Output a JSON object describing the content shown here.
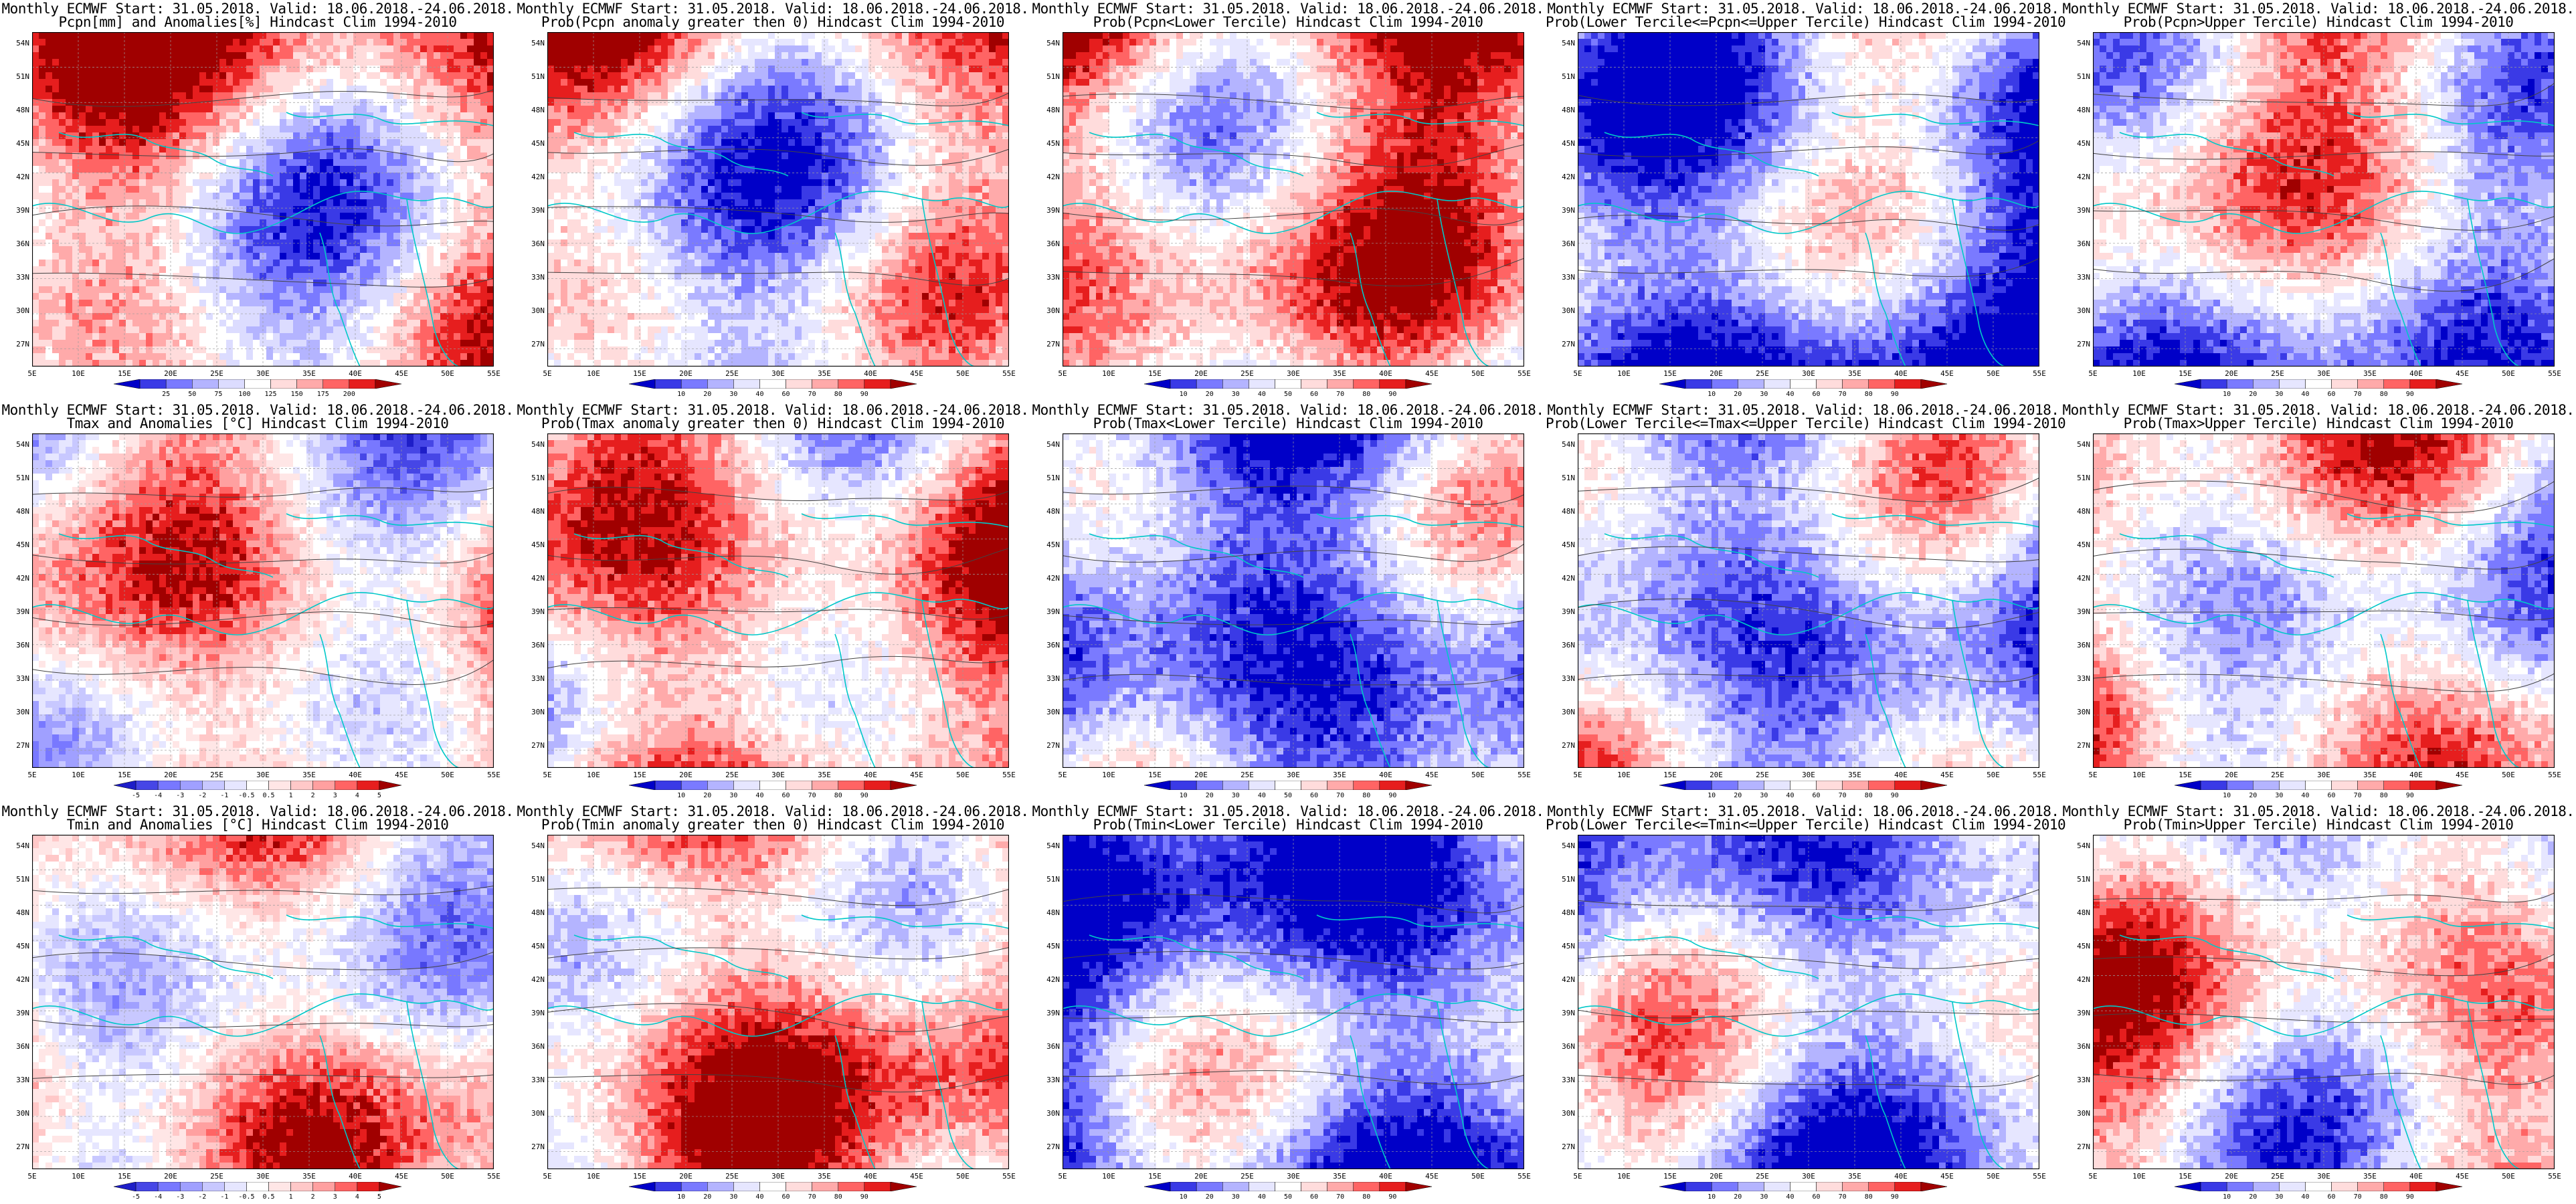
{
  "grid": {
    "panels": [
      {
        "row": 0,
        "col": 0,
        "title_line1": "Monthly ECMWF Start: 31.05.2018. Valid: 18.06.2018.-24.06.2018.",
        "title_line2": "Pcpn[mm] and Anomalies[%] Hindcast Clim 1994-2010",
        "legend_labels": [
          "25",
          "50",
          "75",
          "100",
          "125",
          "150",
          "175",
          "200"
        ],
        "palette": "prec_div"
      },
      {
        "row": 0,
        "col": 1,
        "title_line1": "Monthly ECMWF Start: 31.05.2018. Valid: 18.06.2018.-24.06.2018.",
        "title_line2": "Prob(Pcpn anomaly greater then 0) Hindcast Clim 1994-2010",
        "legend_labels": [
          "10",
          "20",
          "30",
          "40",
          "60",
          "70",
          "80",
          "90"
        ],
        "palette": "prob"
      },
      {
        "row": 0,
        "col": 2,
        "title_line1": "Monthly ECMWF Start: 31.05.2018. Valid: 18.06.2018.-24.06.2018.",
        "title_line2": "Prob(Pcpn<Lower Tercile) Hindcast Clim 1994-2010",
        "legend_labels": [
          "10",
          "20",
          "30",
          "40",
          "50",
          "60",
          "70",
          "80",
          "90"
        ],
        "palette": "prob"
      },
      {
        "row": 0,
        "col": 3,
        "title_line1": "Monthly ECMWF Start: 31.05.2018. Valid: 18.06.2018.-24.06.2018.",
        "title_line2": "Prob(Lower Tercile<=Pcpn<=Upper Tercile) Hindcast Clim 1994-2010",
        "legend_labels": [
          "10",
          "20",
          "30",
          "40",
          "60",
          "70",
          "80",
          "90"
        ],
        "palette": "prob"
      },
      {
        "row": 0,
        "col": 4,
        "title_line1": "Monthly ECMWF Start: 31.05.2018. Valid: 18.06.2018.-24.06.2018.",
        "title_line2": "Prob(Pcpn>Upper Tercile) Hindcast Clim 1994-2010",
        "legend_labels": [
          "10",
          "20",
          "30",
          "40",
          "60",
          "70",
          "80",
          "90"
        ],
        "palette": "prob"
      },
      {
        "row": 1,
        "col": 0,
        "title_line1": "Monthly ECMWF Start: 31.05.2018. Valid: 18.06.2018.-24.06.2018.",
        "title_line2": "Tmax and Anomalies [°C] Hindcast Clim 1994-2010",
        "legend_labels": [
          "-5",
          "-4",
          "-3",
          "-2",
          "-1",
          "-0.5",
          "0.5",
          "1",
          "2",
          "3",
          "4",
          "5"
        ],
        "palette": "temp_div"
      },
      {
        "row": 1,
        "col": 1,
        "title_line1": "Monthly ECMWF Start: 31.05.2018. Valid: 18.06.2018.-24.06.2018.",
        "title_line2": "Prob(Tmax anomaly greater then 0) Hindcast Clim 1994-2010",
        "legend_labels": [
          "10",
          "20",
          "30",
          "40",
          "60",
          "70",
          "80",
          "90"
        ],
        "palette": "prob"
      },
      {
        "row": 1,
        "col": 2,
        "title_line1": "Monthly ECMWF Start: 31.05.2018. Valid: 18.06.2018.-24.06.2018.",
        "title_line2": "Prob(Tmax<Lower Tercile) Hindcast Clim 1994-2010",
        "legend_labels": [
          "10",
          "20",
          "30",
          "40",
          "50",
          "60",
          "70",
          "80",
          "90"
        ],
        "palette": "prob"
      },
      {
        "row": 1,
        "col": 3,
        "title_line1": "Monthly ECMWF Start: 31.05.2018. Valid: 18.06.2018.-24.06.2018.",
        "title_line2": "Prob(Lower Tercile<=Tmax<=Upper Tercile) Hindcast Clim 1994-2010",
        "legend_labels": [
          "10",
          "20",
          "30",
          "40",
          "60",
          "70",
          "80",
          "90"
        ],
        "palette": "prob"
      },
      {
        "row": 1,
        "col": 4,
        "title_line1": "Monthly ECMWF Start: 31.05.2018. Valid: 18.06.2018.-24.06.2018.",
        "title_line2": "Prob(Tmax>Upper Tercile) Hindcast Clim 1994-2010",
        "legend_labels": [
          "10",
          "20",
          "30",
          "40",
          "60",
          "70",
          "80",
          "90"
        ],
        "palette": "prob"
      },
      {
        "row": 2,
        "col": 0,
        "title_line1": "Monthly ECMWF Start: 31.05.2018. Valid: 18.06.2018.-24.06.2018.",
        "title_line2": "Tmin and Anomalies [°C] Hindcast Clim 1994-2010",
        "legend_labels": [
          "-5",
          "-4",
          "-3",
          "-2",
          "-1",
          "-0.5",
          "0.5",
          "1",
          "2",
          "3",
          "4",
          "5"
        ],
        "palette": "temp_div"
      },
      {
        "row": 2,
        "col": 1,
        "title_line1": "Monthly ECMWF Start: 31.05.2018. Valid: 18.06.2018.-24.06.2018.",
        "title_line2": "Prob(Tmin anomaly greater then 0) Hindcast Clim 1994-2010",
        "legend_labels": [
          "10",
          "20",
          "30",
          "40",
          "60",
          "70",
          "80",
          "90"
        ],
        "palette": "prob"
      },
      {
        "row": 2,
        "col": 2,
        "title_line1": "Monthly ECMWF Start: 31.05.2018. Valid: 18.06.2018.-24.06.2018.",
        "title_line2": "Prob(Tmin<Lower Tercile) Hindcast Clim 1994-2010",
        "legend_labels": [
          "10",
          "20",
          "30",
          "40",
          "50",
          "60",
          "70",
          "80",
          "90"
        ],
        "palette": "prob"
      },
      {
        "row": 2,
        "col": 3,
        "title_line1": "Monthly ECMWF Start: 31.05.2018. Valid: 18.06.2018.-24.06.2018.",
        "title_line2": "Prob(Lower Tercile<=Tmin<=Upper Tercile) Hindcast Clim 1994-2010",
        "legend_labels": [
          "10",
          "20",
          "30",
          "40",
          "60",
          "70",
          "80",
          "90"
        ],
        "palette": "prob"
      },
      {
        "row": 2,
        "col": 4,
        "title_line1": "Monthly ECMWF Start: 31.05.2018. Valid: 18.06.2018.-24.06.2018.",
        "title_line2": "Prob(Tmin>Upper Tercile) Hindcast Clim 1994-2010",
        "legend_labels": [
          "10",
          "20",
          "30",
          "40",
          "60",
          "70",
          "80",
          "90"
        ],
        "palette": "prob"
      }
    ]
  },
  "axes": {
    "lat_labels": [
      "54N",
      "51N",
      "48N",
      "45N",
      "42N",
      "39N",
      "36N",
      "33N",
      "30N",
      "27N"
    ],
    "lon_labels": [
      "5E",
      "10E",
      "15E",
      "20E",
      "25E",
      "30E",
      "35E",
      "40E",
      "45E",
      "50E",
      "55E"
    ]
  },
  "colors": {
    "prob": [
      "#0000c8",
      "#3a3ae6",
      "#7a7aff",
      "#b4b4ff",
      "#e6e6ff",
      "#ffffff",
      "#ffdcdc",
      "#ffaaaa",
      "#ff6464",
      "#e61e1e",
      "#a00000"
    ],
    "prec_div": [
      "#0000c8",
      "#3a3ae6",
      "#7a7aff",
      "#b4b4ff",
      "#dcdcff",
      "#ffffff",
      "#ffdcdc",
      "#ffaaaa",
      "#ff6464",
      "#e61e1e",
      "#a00000"
    ],
    "temp_div": [
      "#1e1ec8",
      "#4646e6",
      "#7878ff",
      "#a0a0ff",
      "#c8c8ff",
      "#e6e6ff",
      "#ffffff",
      "#ffe6e6",
      "#ffc8c8",
      "#ffa0a0",
      "#ff6464",
      "#e61e1e",
      "#a00000"
    ],
    "coast": "#00c8c8",
    "contour": "#444444"
  }
}
